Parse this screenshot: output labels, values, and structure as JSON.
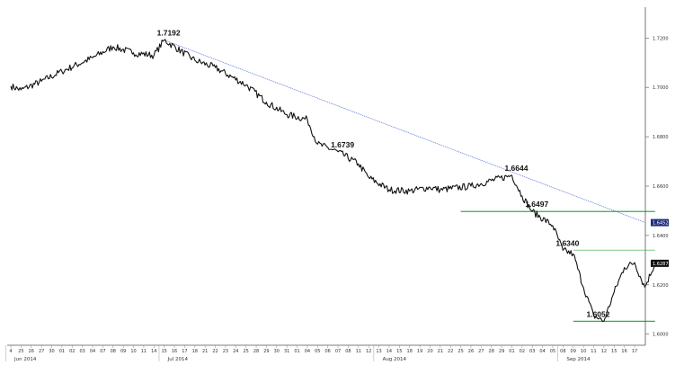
{
  "chart_data": {
    "type": "line",
    "instrument_series": "price",
    "y_ticks": [
      "1.7200",
      "1.7000",
      "1.6800",
      "1.6600",
      "1.6400",
      "1.6200",
      "1.6000"
    ],
    "y_tick_values": [
      1.72,
      1.7,
      1.68,
      1.66,
      1.64,
      1.62,
      1.6
    ],
    "ylim": [
      1.5955,
      1.7325
    ],
    "x_day_labels": [
      "4",
      "25",
      "26",
      "27",
      "30",
      "01",
      "02",
      "03",
      "04",
      "07",
      "08",
      "09",
      "10",
      "11",
      "14",
      "15",
      "16",
      "17",
      "18",
      "21",
      "22",
      "23",
      "24",
      "25",
      "28",
      "29",
      "30",
      "31",
      "01",
      "04",
      "05",
      "06",
      "07",
      "08",
      "11",
      "12",
      "13",
      "14",
      "15",
      "18",
      "19",
      "20",
      "21",
      "22",
      "25",
      "26",
      "27",
      "28",
      "29",
      "01",
      "02",
      "03",
      "04",
      "05",
      "08",
      "09",
      "10",
      "11",
      "12",
      "15",
      "16",
      "17"
    ],
    "months": [
      {
        "label": "Jun 2014",
        "at_index": 0
      },
      {
        "label": "Jul 2014",
        "at_index": 15
      },
      {
        "label": "Aug 2014",
        "at_index": 36
      },
      {
        "label": "Sep 2014",
        "at_index": 54
      }
    ],
    "x": [
      0,
      1,
      3,
      5,
      8,
      10,
      12,
      14,
      15,
      18,
      20,
      23,
      25,
      27,
      29,
      30,
      32,
      34,
      35,
      37,
      39,
      41,
      42,
      45,
      49,
      50,
      51,
      53,
      54,
      55,
      56,
      57,
      58,
      59,
      60,
      61,
      62,
      63
    ],
    "values": [
      1.7005,
      1.699,
      1.7025,
      1.7065,
      1.712,
      1.7165,
      1.714,
      1.713,
      1.7192,
      1.711,
      1.708,
      1.701,
      1.694,
      1.689,
      1.687,
      1.677,
      1.6739,
      1.669,
      1.6635,
      1.6585,
      1.658,
      1.6595,
      1.6585,
      1.66,
      1.6644,
      1.656,
      1.6497,
      1.644,
      1.634,
      1.6325,
      1.619,
      1.6075,
      1.6052,
      1.617,
      1.627,
      1.629,
      1.619,
      1.6287
    ],
    "annotations": [
      {
        "text": "1.7192",
        "x": 15,
        "y": 1.7192
      },
      {
        "text": "1.6739",
        "x": 32,
        "y": 1.6739
      },
      {
        "text": "1.6644",
        "x": 49,
        "y": 1.6644
      },
      {
        "text": "1.6497",
        "x": 51,
        "y": 1.6497
      },
      {
        "text": "1.6340",
        "x": 54,
        "y": 1.634
      },
      {
        "text": "1.6052",
        "x": 57,
        "y": 1.6052
      }
    ],
    "horizontal_levels": [
      {
        "y": 1.6497,
        "x_from": 44,
        "x_to": 63,
        "color": "#2bb24c"
      },
      {
        "y": 1.634,
        "x_from": 55,
        "x_to": 63,
        "color": "#8fd19e"
      },
      {
        "y": 1.6052,
        "x_from": 55,
        "x_to": 63,
        "color": "#2bb24c"
      }
    ],
    "trendline": {
      "x1": 15,
      "y1": 1.7192,
      "x2": 63,
      "y2": 1.6452,
      "color": "#3355cc"
    },
    "price_badges": [
      {
        "text": "1.6452",
        "y": 1.6452,
        "color": "#1f2f80"
      },
      {
        "text": "1.6287",
        "y": 1.6287,
        "color": "#111111"
      }
    ],
    "grid": false,
    "legend": "none"
  }
}
